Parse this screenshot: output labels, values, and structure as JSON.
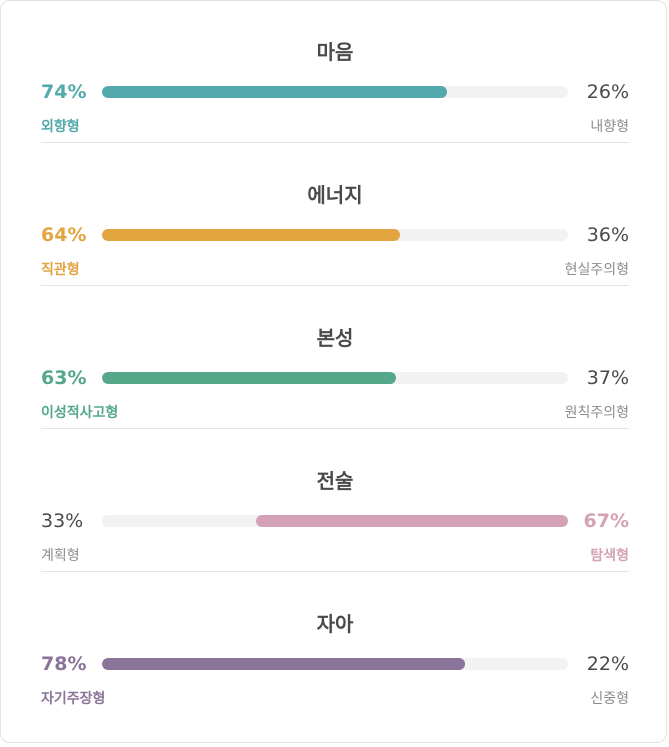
{
  "traits": [
    {
      "title": "마음",
      "left_pct": "74%",
      "right_pct": "26%",
      "left_label": "외향형",
      "right_label": "내향형",
      "value": 74,
      "dominant": "left",
      "color": "#53a9ab"
    },
    {
      "title": "에너지",
      "left_pct": "64%",
      "right_pct": "36%",
      "left_label": "직관형",
      "right_label": "현실주의형",
      "value": 64,
      "dominant": "left",
      "color": "#e2a43f"
    },
    {
      "title": "본성",
      "left_pct": "63%",
      "right_pct": "37%",
      "left_label": "이성적사고형",
      "right_label": "원칙주의형",
      "value": 63,
      "dominant": "left",
      "color": "#55a78a"
    },
    {
      "title": "전술",
      "left_pct": "33%",
      "right_pct": "67%",
      "left_label": "계획형",
      "right_label": "탐색형",
      "value": 67,
      "dominant": "right",
      "color": "#d4a2b6"
    },
    {
      "title": "자아",
      "left_pct": "78%",
      "right_pct": "22%",
      "left_label": "자기주장형",
      "right_label": "신중형",
      "value": 78,
      "dominant": "left",
      "color": "#8b7499"
    }
  ]
}
